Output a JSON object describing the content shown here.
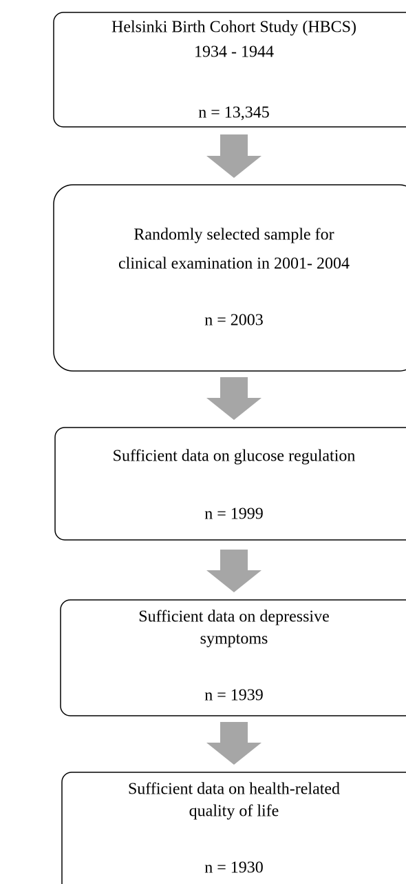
{
  "nodes": [
    {
      "lines": [
        "Helsinki Birth Cohort Study (HBCS)",
        "1934 - 1944"
      ],
      "count": "n = 13,345"
    },
    {
      "lines": [
        "Randomly selected sample for",
        "clinical examination in 2001- 2004"
      ],
      "count": "n = 2003"
    },
    {
      "lines": [
        "Sufficient data on glucose regulation"
      ],
      "count": "n = 1999"
    },
    {
      "lines": [
        "Sufficient data on depressive",
        "symptoms"
      ],
      "count": "n = 1939"
    },
    {
      "lines": [
        "Sufficient data on health-related",
        "quality of life"
      ],
      "count": "n = 1930"
    }
  ]
}
